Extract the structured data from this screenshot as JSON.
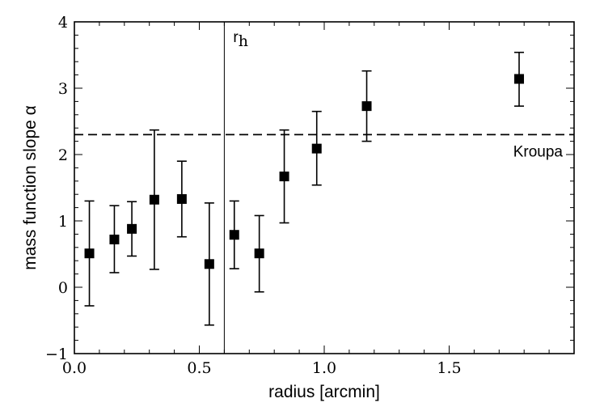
{
  "chart_data": {
    "type": "scatter",
    "xlabel": "radius [arcmin]",
    "ylabel": "mass function slope α",
    "xlim": [
      0.0,
      2.0
    ],
    "ylim": [
      -1,
      4
    ],
    "x_ticks": [
      {
        "value": 0.0,
        "label": "0.0"
      },
      {
        "value": 0.5,
        "label": "0.5"
      },
      {
        "value": 1.0,
        "label": "1.0"
      },
      {
        "value": 1.5,
        "label": "1.5"
      }
    ],
    "y_ticks": [
      {
        "value": -1,
        "label": "−1"
      },
      {
        "value": 0,
        "label": "0"
      },
      {
        "value": 1,
        "label": "1"
      },
      {
        "value": 2,
        "label": "2"
      },
      {
        "value": 3,
        "label": "3"
      },
      {
        "value": 4,
        "label": "4"
      }
    ],
    "grid": false,
    "series": [
      {
        "marker": "square",
        "color": "#000000",
        "points": [
          {
            "x": 0.06,
            "y": 0.51,
            "ylo": -0.28,
            "yhi": 1.3
          },
          {
            "x": 0.16,
            "y": 0.72,
            "ylo": 0.22,
            "yhi": 1.23
          },
          {
            "x": 0.23,
            "y": 0.88,
            "ylo": 0.47,
            "yhi": 1.29
          },
          {
            "x": 0.32,
            "y": 1.32,
            "ylo": 0.27,
            "yhi": 2.37
          },
          {
            "x": 0.43,
            "y": 1.33,
            "ylo": 0.76,
            "yhi": 1.9
          },
          {
            "x": 0.54,
            "y": 0.35,
            "ylo": -0.57,
            "yhi": 1.27
          },
          {
            "x": 0.64,
            "y": 0.79,
            "ylo": 0.28,
            "yhi": 1.3
          },
          {
            "x": 0.74,
            "y": 0.51,
            "ylo": -0.07,
            "yhi": 1.08
          },
          {
            "x": 0.84,
            "y": 1.67,
            "ylo": 0.97,
            "yhi": 2.37
          },
          {
            "x": 0.97,
            "y": 2.09,
            "ylo": 1.54,
            "yhi": 2.65
          },
          {
            "x": 1.17,
            "y": 2.73,
            "ylo": 2.2,
            "yhi": 3.26
          },
          {
            "x": 1.78,
            "y": 3.14,
            "ylo": 2.73,
            "yhi": 3.54
          }
        ]
      }
    ],
    "reference_lines": [
      {
        "orientation": "horizontal",
        "value": 2.3,
        "style": "dashed",
        "label": "Kroupa"
      },
      {
        "orientation": "vertical",
        "value": 0.6,
        "style": "solid",
        "label": "r",
        "label_subscript": "h"
      }
    ]
  }
}
